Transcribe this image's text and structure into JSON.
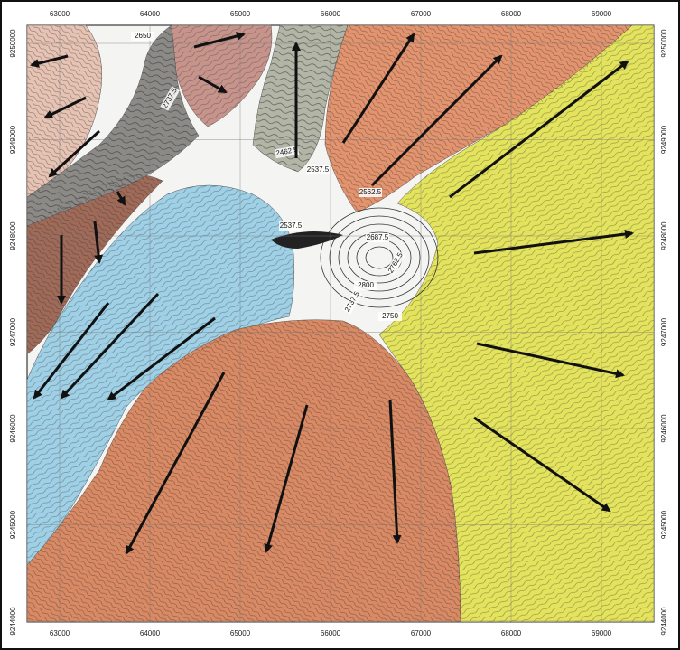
{
  "map": {
    "x_ticks": [
      "63000",
      "64000",
      "65000",
      "66000",
      "67000",
      "68000",
      "69000"
    ],
    "y_ticks": [
      "9250000",
      "9249000",
      "9248000",
      "9247000",
      "9246000",
      "9245000",
      "9244000"
    ],
    "contour_labels": [
      "2650",
      "2737.5",
      "2462.5",
      "2537.5",
      "2687.5",
      "2762.5",
      "2800",
      "2737.5",
      "2750",
      "2537.5",
      "2562.5"
    ],
    "colors": {
      "pink": "#e7c3b4",
      "mauve": "#c7948c",
      "gray": "#b3b5a6",
      "brown_dark": "#a06a58",
      "blue": "#9fd0e6",
      "orange_top": "#e3946e",
      "orange_bottom": "#d98a64",
      "yellow": "#e3e35d",
      "white_center": "#f4f4f2",
      "frame": "#111111",
      "arrow": "#111111"
    }
  }
}
